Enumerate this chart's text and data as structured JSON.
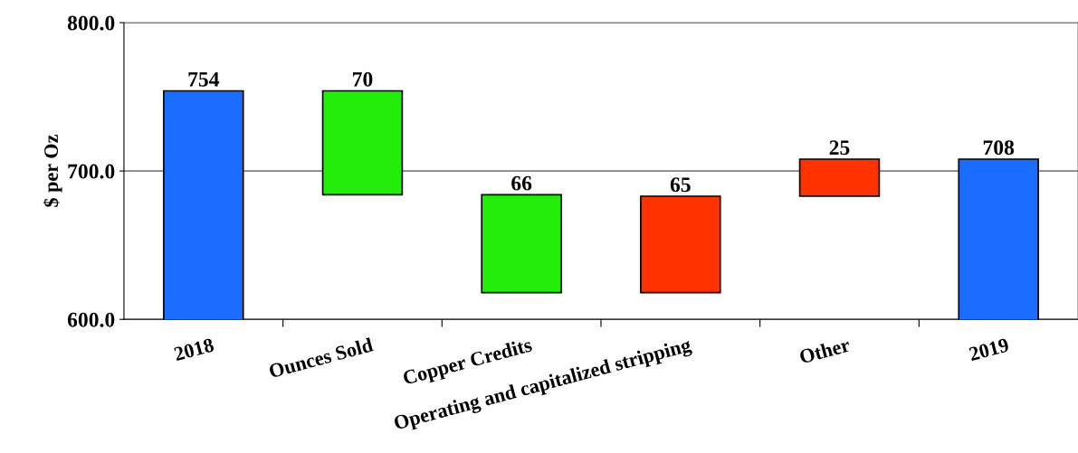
{
  "chart_data": {
    "type": "bar",
    "ylabel": "$ per Oz",
    "categories": [
      "2018",
      "Ounces Sold",
      "Copper Credits",
      "Operating and capitalized stripping",
      "Other",
      "2019"
    ],
    "values": [
      754,
      70,
      66,
      65,
      25,
      708
    ],
    "base": [
      null,
      684,
      618,
      618,
      683,
      null
    ],
    "colors": [
      "#1a6cff",
      "#22ee0a",
      "#22ee0a",
      "#ff3300",
      "#ff3300",
      "#1a6cff"
    ],
    "ylim": [
      600,
      800
    ],
    "yticks": [
      {
        "value": 600,
        "label": "600.0"
      },
      {
        "value": 700,
        "label": "700.0"
      },
      {
        "value": 800,
        "label": "800.0"
      }
    ],
    "grid": "y",
    "data_labels": true
  }
}
